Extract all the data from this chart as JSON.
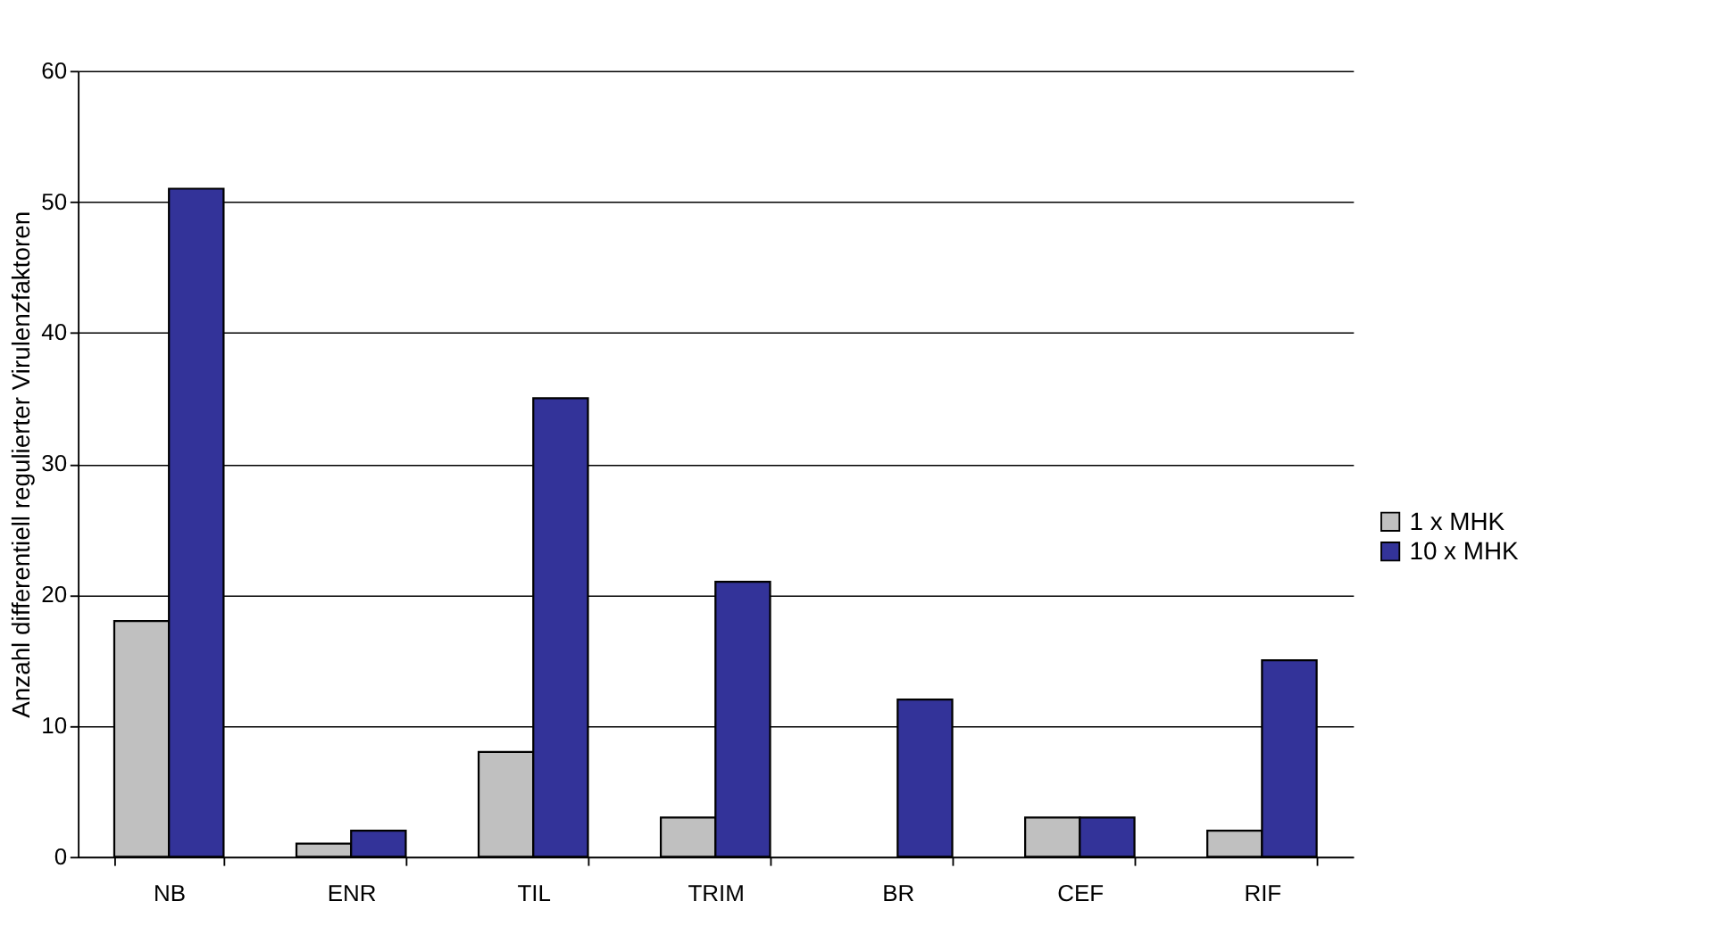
{
  "chart_data": {
    "type": "bar",
    "ylabel": "Anzahl differentiell regulierter Virulenzfaktoren",
    "categories": [
      "NB",
      "ENR",
      "TIL",
      "TRIM",
      "BR",
      "CEF",
      "RIF"
    ],
    "series": [
      {
        "name": "1 x MHK",
        "color": "#c0c0c0",
        "values": [
          18,
          1,
          8,
          3,
          null,
          3,
          2
        ]
      },
      {
        "name": "10 x MHK",
        "color": "#333399",
        "values": [
          51,
          2,
          35,
          21,
          12,
          3,
          15
        ]
      }
    ],
    "ylim": [
      0,
      60
    ],
    "yticks": [
      0,
      10,
      20,
      30,
      40,
      50,
      60
    ],
    "grid": "y",
    "legend": "right"
  }
}
